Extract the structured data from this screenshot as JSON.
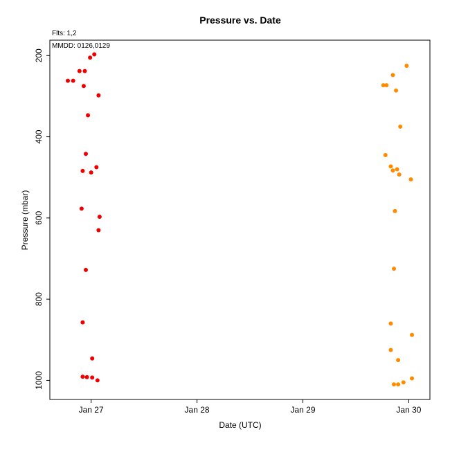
{
  "chart_data": {
    "type": "scatter",
    "title": "Pressure  vs. Date",
    "xlabel": "Date (UTC)",
    "ylabel": "Pressure (mbar)",
    "annotations": {
      "fits": "Flts: 1,2",
      "mmdd": "MMDD: 0126,0129"
    },
    "x_ticks": [
      {
        "label": "Jan 27",
        "value": 27
      },
      {
        "label": "Jan 28",
        "value": 28
      },
      {
        "label": "Jan 29",
        "value": 29
      },
      {
        "label": "Jan 30",
        "value": 30
      }
    ],
    "y_ticks": [
      200,
      400,
      600,
      800,
      1000
    ],
    "xlim": [
      26.61,
      30.2
    ],
    "ylim": [
      1047,
      162
    ],
    "y_inverted": true,
    "grid": false,
    "series": [
      {
        "color": "#ee0000",
        "points": [
          {
            "x": 26.78,
            "y": 262
          },
          {
            "x": 26.83,
            "y": 262
          },
          {
            "x": 26.89,
            "y": 238
          },
          {
            "x": 26.94,
            "y": 238
          },
          {
            "x": 26.93,
            "y": 275
          },
          {
            "x": 26.99,
            "y": 205
          },
          {
            "x": 27.03,
            "y": 197
          },
          {
            "x": 27.07,
            "y": 298
          },
          {
            "x": 26.97,
            "y": 347
          },
          {
            "x": 26.95,
            "y": 442
          },
          {
            "x": 26.92,
            "y": 484
          },
          {
            "x": 27.0,
            "y": 488
          },
          {
            "x": 27.05,
            "y": 475
          },
          {
            "x": 26.91,
            "y": 577
          },
          {
            "x": 27.08,
            "y": 597
          },
          {
            "x": 27.07,
            "y": 630
          },
          {
            "x": 26.95,
            "y": 728
          },
          {
            "x": 26.92,
            "y": 857
          },
          {
            "x": 27.01,
            "y": 946
          },
          {
            "x": 26.92,
            "y": 991
          },
          {
            "x": 26.96,
            "y": 992
          },
          {
            "x": 27.01,
            "y": 993
          },
          {
            "x": 27.06,
            "y": 1000
          }
        ]
      },
      {
        "color": "#ff8c00",
        "points": [
          {
            "x": 29.98,
            "y": 225
          },
          {
            "x": 29.85,
            "y": 248
          },
          {
            "x": 29.76,
            "y": 273
          },
          {
            "x": 29.79,
            "y": 273
          },
          {
            "x": 29.88,
            "y": 286
          },
          {
            "x": 29.92,
            "y": 375
          },
          {
            "x": 29.78,
            "y": 445
          },
          {
            "x": 29.83,
            "y": 473
          },
          {
            "x": 29.85,
            "y": 483
          },
          {
            "x": 29.89,
            "y": 480
          },
          {
            "x": 29.91,
            "y": 493
          },
          {
            "x": 30.02,
            "y": 505
          },
          {
            "x": 29.87,
            "y": 583
          },
          {
            "x": 29.86,
            "y": 725
          },
          {
            "x": 29.83,
            "y": 860
          },
          {
            "x": 30.03,
            "y": 888
          },
          {
            "x": 29.83,
            "y": 925
          },
          {
            "x": 29.9,
            "y": 950
          },
          {
            "x": 30.03,
            "y": 995
          },
          {
            "x": 29.95,
            "y": 1005
          },
          {
            "x": 29.86,
            "y": 1010
          },
          {
            "x": 29.9,
            "y": 1010
          }
        ]
      }
    ]
  }
}
